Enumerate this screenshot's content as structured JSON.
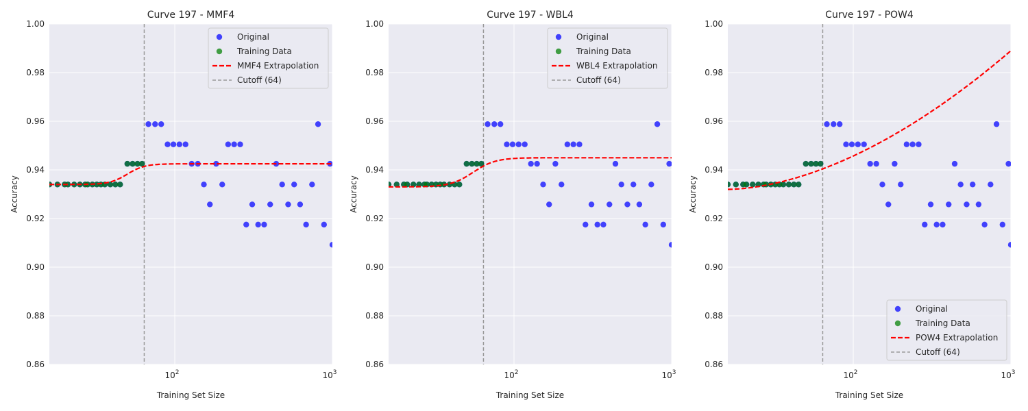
{
  "chart_data": [
    {
      "type": "scatter",
      "title": "Curve 197 - MMF4",
      "xlabel": "Training Set Size",
      "ylabel": "Accuracy",
      "xscale": "log",
      "xlim": [
        16,
        1000
      ],
      "ylim": [
        0.86,
        1.0
      ],
      "yticks": [
        "0.86",
        "0.88",
        "0.90",
        "0.92",
        "0.94",
        "0.96",
        "0.98",
        "1.00"
      ],
      "xticks": [
        {
          "base": "10",
          "exp": "2",
          "value": 100
        },
        {
          "base": "10",
          "exp": "3",
          "value": 1000
        }
      ],
      "grid": true,
      "legend_position": "top-right",
      "cutoff": 64,
      "series": [
        {
          "name": "Original",
          "kind": "scatter",
          "color": "#0000ff"
        },
        {
          "name": "Training Data",
          "kind": "scatter",
          "color": "#008000"
        },
        {
          "name": "MMF4 Extrapolation",
          "kind": "line",
          "color": "#ff0000",
          "y_plateau": 0.9425
        },
        {
          "name": "Cutoff (64)",
          "kind": "vline",
          "color": "#808080"
        }
      ]
    },
    {
      "type": "scatter",
      "title": "Curve 197 - WBL4",
      "xlabel": "Training Set Size",
      "ylabel": "Accuracy",
      "xscale": "log",
      "xlim": [
        16,
        1000
      ],
      "ylim": [
        0.86,
        1.0
      ],
      "yticks": [
        "0.86",
        "0.88",
        "0.90",
        "0.92",
        "0.94",
        "0.96",
        "0.98",
        "1.00"
      ],
      "xticks": [
        {
          "base": "10",
          "exp": "2",
          "value": 100
        },
        {
          "base": "10",
          "exp": "3",
          "value": 1000
        }
      ],
      "grid": true,
      "legend_position": "top-right",
      "cutoff": 64,
      "series": [
        {
          "name": "Original",
          "kind": "scatter",
          "color": "#0000ff"
        },
        {
          "name": "Training Data",
          "kind": "scatter",
          "color": "#008000"
        },
        {
          "name": "WBL4 Extrapolation",
          "kind": "line",
          "color": "#ff0000",
          "y_plateau": 0.945
        },
        {
          "name": "Cutoff (64)",
          "kind": "vline",
          "color": "#808080"
        }
      ]
    },
    {
      "type": "scatter",
      "title": "Curve 197 - POW4",
      "xlabel": "Training Set Size",
      "ylabel": "Accuracy",
      "xscale": "log",
      "xlim": [
        16,
        1000
      ],
      "ylim": [
        0.86,
        1.0
      ],
      "yticks": [
        "0.86",
        "0.88",
        "0.90",
        "0.92",
        "0.94",
        "0.96",
        "0.98",
        "1.00"
      ],
      "xticks": [
        {
          "base": "10",
          "exp": "2",
          "value": 100
        },
        {
          "base": "10",
          "exp": "3",
          "value": 1000
        }
      ],
      "grid": true,
      "legend_position": "bottom-right",
      "cutoff": 64,
      "series": [
        {
          "name": "Original",
          "kind": "scatter",
          "color": "#0000ff"
        },
        {
          "name": "Training Data",
          "kind": "scatter",
          "color": "#008000"
        },
        {
          "name": "POW4 Extrapolation",
          "kind": "line",
          "color": "#ff0000",
          "y_end": 0.989
        },
        {
          "name": "Cutoff (64)",
          "kind": "vline",
          "color": "#808080"
        }
      ]
    }
  ],
  "points": {
    "original": [
      [
        16,
        0.934
      ],
      [
        18,
        0.934
      ],
      [
        20,
        0.934
      ],
      [
        21,
        0.934
      ],
      [
        23,
        0.934
      ],
      [
        25,
        0.934
      ],
      [
        27,
        0.934
      ],
      [
        28,
        0.934
      ],
      [
        30,
        0.934
      ],
      [
        32,
        0.934
      ],
      [
        34,
        0.934
      ],
      [
        36,
        0.934
      ],
      [
        39,
        0.934
      ],
      [
        42,
        0.934
      ],
      [
        45,
        0.934
      ],
      [
        50,
        0.9425
      ],
      [
        54,
        0.9425
      ],
      [
        58,
        0.9425
      ],
      [
        62,
        0.9425
      ],
      [
        68,
        0.9588
      ],
      [
        75,
        0.9588
      ],
      [
        82,
        0.9588
      ],
      [
        90,
        0.9505
      ],
      [
        98,
        0.9505
      ],
      [
        107,
        0.9505
      ],
      [
        117,
        0.9505
      ],
      [
        128,
        0.9425
      ],
      [
        140,
        0.9425
      ],
      [
        153,
        0.934
      ],
      [
        167,
        0.9258
      ],
      [
        183,
        0.9425
      ],
      [
        200,
        0.934
      ],
      [
        218,
        0.9505
      ],
      [
        238,
        0.9505
      ],
      [
        260,
        0.9505
      ],
      [
        284,
        0.9175
      ],
      [
        310,
        0.9258
      ],
      [
        338,
        0.9175
      ],
      [
        369,
        0.9175
      ],
      [
        403,
        0.9258
      ],
      [
        440,
        0.9425
      ],
      [
        480,
        0.934
      ],
      [
        524,
        0.9258
      ],
      [
        572,
        0.934
      ],
      [
        624,
        0.9258
      ],
      [
        681,
        0.9175
      ],
      [
        743,
        0.934
      ],
      [
        811,
        0.9588
      ],
      [
        885,
        0.9175
      ],
      [
        966,
        0.9425
      ],
      [
        1000,
        0.9092
      ]
    ],
    "training": [
      [
        16,
        0.934
      ],
      [
        18,
        0.934
      ],
      [
        20,
        0.934
      ],
      [
        21,
        0.934
      ],
      [
        23,
        0.934
      ],
      [
        25,
        0.934
      ],
      [
        27,
        0.934
      ],
      [
        28,
        0.934
      ],
      [
        30,
        0.934
      ],
      [
        32,
        0.934
      ],
      [
        34,
        0.934
      ],
      [
        36,
        0.934
      ],
      [
        39,
        0.934
      ],
      [
        42,
        0.934
      ],
      [
        45,
        0.934
      ],
      [
        50,
        0.9425
      ],
      [
        54,
        0.9425
      ],
      [
        58,
        0.9425
      ],
      [
        62,
        0.9425
      ]
    ]
  }
}
